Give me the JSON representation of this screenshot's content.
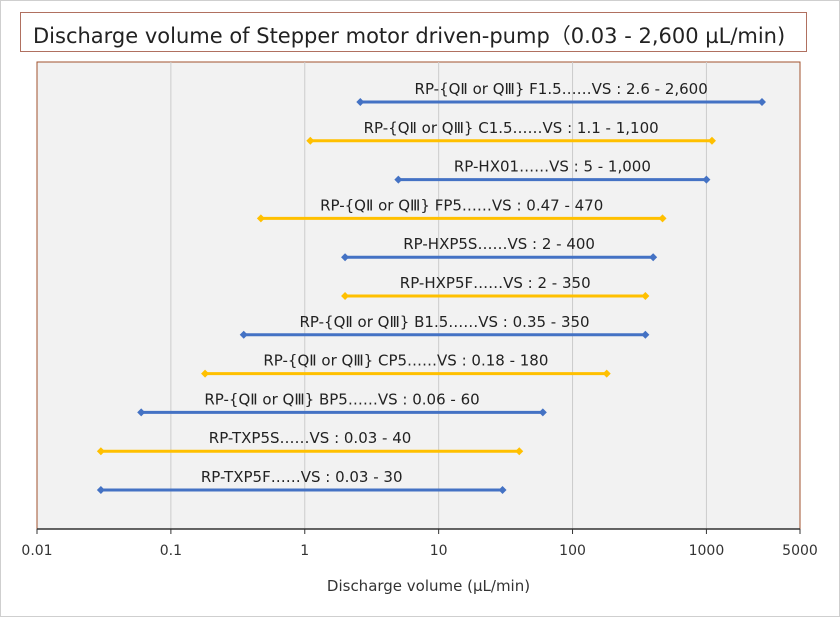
{
  "chart_data": {
    "type": "range-bar",
    "title": "Discharge volume of Stepper motor driven-pump（0.03 - 2,600 µL/min)",
    "xlabel": "Discharge volume (µL/min)",
    "x_scale": "log",
    "xlim": [
      0.01,
      5000
    ],
    "x_ticks": [
      "0.01",
      "0.1",
      "1",
      "10",
      "100",
      "1000",
      "5000"
    ],
    "colors": {
      "blue": "#4472c4",
      "yellow": "#ffc000",
      "plot_bg": "#f2f2f2",
      "plot_border": "#a0522d"
    },
    "series": [
      {
        "label": "RP-{QⅡ  or QⅢ} F1.5……VS : 2.6 - 2,600",
        "min": 2.6,
        "max": 2600,
        "color": "blue"
      },
      {
        "label": "RP-{QⅡ  or QⅢ} C1.5……VS : 1.1 - 1,100",
        "min": 1.1,
        "max": 1100,
        "color": "yellow"
      },
      {
        "label": "RP-HX01……VS : 5 - 1,000",
        "min": 5,
        "max": 1000,
        "color": "blue"
      },
      {
        "label": "RP-{QⅡ  or QⅢ} FP5……VS : 0.47 - 470",
        "min": 0.47,
        "max": 470,
        "color": "yellow"
      },
      {
        "label": "RP-HXP5S……VS : 2 - 400",
        "min": 2,
        "max": 400,
        "color": "blue"
      },
      {
        "label": "RP-HXP5F……VS : 2 - 350",
        "min": 2,
        "max": 350,
        "color": "yellow"
      },
      {
        "label": "RP-{QⅡ  or QⅢ} B1.5……VS : 0.35 - 350",
        "min": 0.35,
        "max": 350,
        "color": "blue"
      },
      {
        "label": "RP-{QⅡ  or QⅢ} CP5……VS : 0.18 - 180",
        "min": 0.18,
        "max": 180,
        "color": "yellow"
      },
      {
        "label": "RP-{QⅡ  or QⅢ} BP5……VS : 0.06 - 60",
        "min": 0.06,
        "max": 60,
        "color": "blue"
      },
      {
        "label": "RP-TXP5S……VS : 0.03 - 40",
        "min": 0.03,
        "max": 40,
        "color": "yellow"
      },
      {
        "label": "RP-TXP5F……VS : 0.03 - 30",
        "min": 0.03,
        "max": 30,
        "color": "blue"
      }
    ]
  }
}
